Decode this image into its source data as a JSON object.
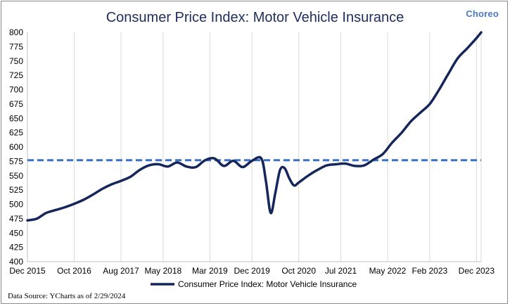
{
  "brand": {
    "name": "Choreo",
    "dot": ""
  },
  "source_note": "Data Source: YCharts as of 2/29/2024",
  "colors": {
    "series": "#15265a",
    "reference": "#3a70c8",
    "title": "#1f2d5a",
    "grid": "#d9d9d9"
  },
  "chart_data": {
    "type": "line",
    "title": "Consumer Price Index: Motor Vehicle Insurance",
    "xlabel": "",
    "ylabel": "",
    "ylim": [
      400,
      800
    ],
    "yticks": [
      400,
      425,
      450,
      475,
      500,
      525,
      550,
      575,
      600,
      625,
      650,
      675,
      700,
      725,
      750,
      775,
      800
    ],
    "xlim": [
      "2015-12",
      "2024-01"
    ],
    "xticks": [
      "Dec 2015",
      "Oct 2016",
      "Aug 2017",
      "May 2018",
      "Mar 2019",
      "Dec 2019",
      "Oct 2020",
      "Jul 2021",
      "May 2022",
      "Feb 2023",
      "Dec 2023"
    ],
    "grid": "vertical",
    "legend": "bottom",
    "reference_line": {
      "y": 577,
      "style": "dashed"
    },
    "series": [
      {
        "name": "Consumer Price Index: Motor Vehicle Insurance",
        "x": [
          "2015-12",
          "2016-02",
          "2016-04",
          "2016-06",
          "2016-08",
          "2016-10",
          "2016-12",
          "2017-02",
          "2017-04",
          "2017-06",
          "2017-08",
          "2017-10",
          "2017-12",
          "2018-02",
          "2018-04",
          "2018-06",
          "2018-08",
          "2018-10",
          "2018-12",
          "2019-02",
          "2019-04",
          "2019-06",
          "2019-08",
          "2019-10",
          "2019-12",
          "2020-02",
          "2020-03",
          "2020-04",
          "2020-05",
          "2020-06",
          "2020-07",
          "2020-08",
          "2020-09",
          "2020-10",
          "2020-12",
          "2021-02",
          "2021-04",
          "2021-06",
          "2021-08",
          "2021-10",
          "2021-12",
          "2022-02",
          "2022-04",
          "2022-06",
          "2022-08",
          "2022-10",
          "2022-12",
          "2023-02",
          "2023-04",
          "2023-06",
          "2023-08",
          "2023-10",
          "2023-12",
          "2024-01"
        ],
        "values": [
          472,
          475,
          485,
          490,
          495,
          501,
          508,
          517,
          527,
          535,
          541,
          548,
          560,
          568,
          570,
          566,
          573,
          566,
          565,
          577,
          580,
          567,
          576,
          565,
          576,
          580,
          540,
          485,
          520,
          560,
          563,
          545,
          533,
          538,
          550,
          560,
          568,
          570,
          571,
          567,
          568,
          578,
          588,
          608,
          625,
          645,
          660,
          675,
          700,
          728,
          755,
          772,
          790,
          800
        ]
      }
    ]
  }
}
